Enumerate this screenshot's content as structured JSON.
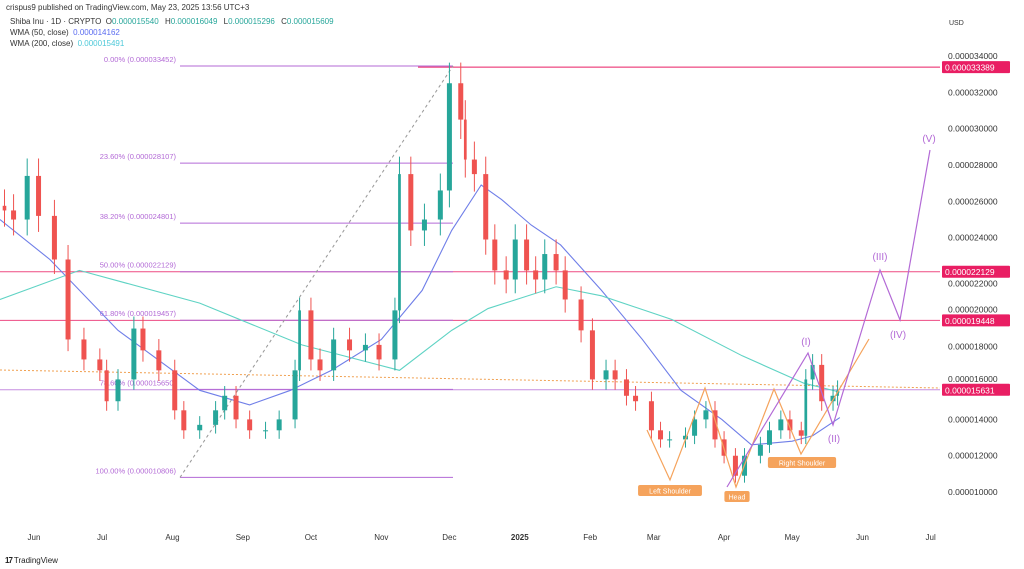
{
  "header": {
    "published": "crispus9 published on TradingView.com, May 23, 2025 13:56 UTC+3"
  },
  "legend": {
    "symbol": "Shiba Inu · 1D · CRYPTO",
    "o_label": "O",
    "o": "0.000015540",
    "h_label": "H",
    "h": "0.000016049",
    "l_label": "L",
    "l": "0.000015296",
    "c_label": "C",
    "c": "0.000015609",
    "wma50_label": "WMA (50, close)",
    "wma50": "0.000014162",
    "wma200_label": "WMA (200, close)",
    "wma200": "0.000015491"
  },
  "branding": {
    "logo": "TradingView"
  },
  "colors": {
    "up": "#26a69a",
    "down": "#ef5350",
    "wma50": "#6f7ee8",
    "wma200": "#5fd3c4",
    "fib": "#b36ad6",
    "level": "#e91e63",
    "pattern": "#f5a35c",
    "wave": "#b36ad6"
  },
  "chart_data": {
    "type": "candlestick",
    "currency": "USD",
    "ylim": [
      9.5e-06,
      3.52e-05
    ],
    "y_ticks": [
      "0.000034000",
      "0.000032000",
      "0.000030000",
      "0.000028000",
      "0.000026000",
      "0.000024000",
      "0.000022000",
      "0.000020000",
      "0.000018000",
      "0.000016000",
      "0.000014000",
      "0.000012000",
      "0.000010000"
    ],
    "x_ticks": [
      {
        "label": "Jun",
        "date": "2024-06-01"
      },
      {
        "label": "Jul",
        "date": "2024-07-01"
      },
      {
        "label": "Aug",
        "date": "2024-08-01"
      },
      {
        "label": "Sep",
        "date": "2024-09-01"
      },
      {
        "label": "Oct",
        "date": "2024-10-01"
      },
      {
        "label": "Nov",
        "date": "2024-11-01"
      },
      {
        "label": "Dec",
        "date": "2024-12-01"
      },
      {
        "label": "2025",
        "date": "2025-01-01",
        "bold": true
      },
      {
        "label": "Feb",
        "date": "2025-02-01"
      },
      {
        "label": "Mar",
        "date": "2025-03-01"
      },
      {
        "label": "Apr",
        "date": "2025-04-01"
      },
      {
        "label": "May",
        "date": "2025-05-01"
      },
      {
        "label": "Jun",
        "date": "2025-06-01"
      },
      {
        "label": "Jul",
        "date": "2025-07-01"
      }
    ],
    "closes": [
      [
        "2024-05-19",
        2.55e-05
      ],
      [
        "2024-05-23",
        2.5e-05
      ],
      [
        "2024-05-29",
        2.74e-05
      ],
      [
        "2024-06-03",
        2.52e-05
      ],
      [
        "2024-06-10",
        2.28e-05
      ],
      [
        "2024-06-16",
        1.84e-05
      ],
      [
        "2024-06-23",
        1.73e-05
      ],
      [
        "2024-06-30",
        1.67e-05
      ],
      [
        "2024-07-03",
        1.5e-05
      ],
      [
        "2024-07-08",
        1.62e-05
      ],
      [
        "2024-07-15",
        1.9e-05
      ],
      [
        "2024-07-19",
        1.78e-05
      ],
      [
        "2024-07-26",
        1.67e-05
      ],
      [
        "2024-08-02",
        1.45e-05
      ],
      [
        "2024-08-06",
        1.34e-05
      ],
      [
        "2024-08-13",
        1.37e-05
      ],
      [
        "2024-08-20",
        1.45e-05
      ],
      [
        "2024-08-24",
        1.53e-05
      ],
      [
        "2024-08-29",
        1.4e-05
      ],
      [
        "2024-09-04",
        1.34e-05
      ],
      [
        "2024-09-11",
        1.34e-05
      ],
      [
        "2024-09-17",
        1.4e-05
      ],
      [
        "2024-09-24",
        1.67e-05
      ],
      [
        "2024-09-26",
        2e-05
      ],
      [
        "2024-10-01",
        1.73e-05
      ],
      [
        "2024-10-05",
        1.67e-05
      ],
      [
        "2024-10-11",
        1.84e-05
      ],
      [
        "2024-10-18",
        1.78e-05
      ],
      [
        "2024-10-25",
        1.81e-05
      ],
      [
        "2024-10-31",
        1.73e-05
      ],
      [
        "2024-11-07",
        2e-05
      ],
      [
        "2024-11-09",
        2.75e-05
      ],
      [
        "2024-11-14",
        2.44e-05
      ],
      [
        "2024-11-20",
        2.5e-05
      ],
      [
        "2024-11-27",
        2.66e-05
      ],
      [
        "2024-12-01",
        3.25e-05
      ],
      [
        "2024-12-06",
        3.05e-05
      ],
      [
        "2024-12-08",
        2.83e-05
      ],
      [
        "2024-12-12",
        2.75e-05
      ],
      [
        "2024-12-17",
        2.39e-05
      ],
      [
        "2024-12-21",
        2.22e-05
      ],
      [
        "2024-12-26",
        2.17e-05
      ],
      [
        "2024-12-30",
        2.39e-05
      ],
      [
        "2025-01-04",
        2.22e-05
      ],
      [
        "2025-01-08",
        2.17e-05
      ],
      [
        "2025-01-12",
        2.31e-05
      ],
      [
        "2025-01-17",
        2.22e-05
      ],
      [
        "2025-01-21",
        2.06e-05
      ],
      [
        "2025-01-28",
        1.89e-05
      ],
      [
        "2025-02-02",
        1.62e-05
      ],
      [
        "2025-02-08",
        1.67e-05
      ],
      [
        "2025-02-12",
        1.62e-05
      ],
      [
        "2025-02-17",
        1.53e-05
      ],
      [
        "2025-02-21",
        1.5e-05
      ],
      [
        "2025-02-28",
        1.34e-05
      ],
      [
        "2025-03-04",
        1.29e-05
      ],
      [
        "2025-03-08",
        1.29e-05
      ],
      [
        "2025-03-15",
        1.31e-05
      ],
      [
        "2025-03-19",
        1.4e-05
      ],
      [
        "2025-03-24",
        1.45e-05
      ],
      [
        "2025-03-28",
        1.29e-05
      ],
      [
        "2025-04-01",
        1.2e-05
      ],
      [
        "2025-04-06",
        1.09e-05
      ],
      [
        "2025-04-10",
        1.2e-05
      ],
      [
        "2025-04-17",
        1.26e-05
      ],
      [
        "2025-04-21",
        1.34e-05
      ],
      [
        "2025-04-26",
        1.4e-05
      ],
      [
        "2025-04-30",
        1.34e-05
      ],
      [
        "2025-05-05",
        1.31e-05
      ],
      [
        "2025-05-07",
        1.62e-05
      ],
      [
        "2025-05-10",
        1.7e-05
      ],
      [
        "2025-05-14",
        1.5e-05
      ],
      [
        "2025-05-19",
        1.53e-05
      ],
      [
        "2025-05-21",
        1.56e-05
      ]
    ],
    "series": [
      {
        "name": "WMA (50, close)",
        "points": [
          [
            "2024-05-17",
            2.5e-05
          ],
          [
            "2024-06-08",
            2.28e-05
          ],
          [
            "2024-07-08",
            1.89e-05
          ],
          [
            "2024-08-13",
            1.56e-05
          ],
          [
            "2024-09-04",
            1.48e-05
          ],
          [
            "2024-09-22",
            1.56e-05
          ],
          [
            "2024-10-10",
            1.67e-05
          ],
          [
            "2024-11-01",
            1.84e-05
          ],
          [
            "2024-11-19",
            2.11e-05
          ],
          [
            "2024-12-02",
            2.44e-05
          ],
          [
            "2024-12-15",
            2.69e-05
          ],
          [
            "2024-12-24",
            2.61e-05
          ],
          [
            "2025-01-06",
            2.47e-05
          ],
          [
            "2025-01-19",
            2.36e-05
          ],
          [
            "2025-02-06",
            2.11e-05
          ],
          [
            "2025-02-24",
            1.84e-05
          ],
          [
            "2025-03-13",
            1.56e-05
          ],
          [
            "2025-03-31",
            1.4e-05
          ],
          [
            "2025-04-13",
            1.26e-05
          ],
          [
            "2025-05-01",
            1.28e-05
          ],
          [
            "2025-05-10",
            1.31e-05
          ],
          [
            "2025-05-22",
            1.41e-05
          ]
        ]
      },
      {
        "name": "WMA (200, close)",
        "points": [
          [
            "2024-05-17",
            2.06e-05
          ],
          [
            "2024-06-21",
            2.22e-05
          ],
          [
            "2024-08-13",
            2.04e-05
          ],
          [
            "2024-09-27",
            1.81e-05
          ],
          [
            "2024-11-09",
            1.67e-05
          ],
          [
            "2024-12-02",
            1.89e-05
          ],
          [
            "2024-12-18",
            2.01e-05
          ],
          [
            "2025-01-17",
            2.13e-05
          ],
          [
            "2025-02-06",
            2.08e-05
          ],
          [
            "2025-03-09",
            1.95e-05
          ],
          [
            "2025-04-09",
            1.75e-05
          ],
          [
            "2025-05-06",
            1.6e-05
          ],
          [
            "2025-05-22",
            1.55e-05
          ]
        ]
      }
    ],
    "fibonacci": [
      {
        "label": "0.00% (0.000033452)",
        "price": 3.3452e-05
      },
      {
        "label": "23.60% (0.000028107)",
        "price": 2.8107e-05
      },
      {
        "label": "38.20% (0.000024801)",
        "price": 2.4801e-05
      },
      {
        "label": "50.00% (0.000022129)",
        "price": 2.2129e-05
      },
      {
        "label": "61.80% (0.000019457)",
        "price": 1.9457e-05
      },
      {
        "label": "78.60% (0.000015650)",
        "price": 1.565e-05
      },
      {
        "label": "100.00% (0.000010806)",
        "price": 1.0806e-05
      }
    ],
    "levels": [
      {
        "label": "0.000033389",
        "price": 3.3389e-05
      },
      {
        "label": "0.000022129",
        "price": 2.2129e-05
      },
      {
        "label": "0.000019448",
        "price": 1.9448e-05
      },
      {
        "label": "0.000015631",
        "price": 1.5631e-05
      }
    ],
    "pattern_labels": [
      "Left Shoulder",
      "Head",
      "Right Shoulder"
    ],
    "wave_labels": [
      "(I)",
      "(II)",
      "(III)",
      "(IV)",
      "(V)"
    ]
  }
}
